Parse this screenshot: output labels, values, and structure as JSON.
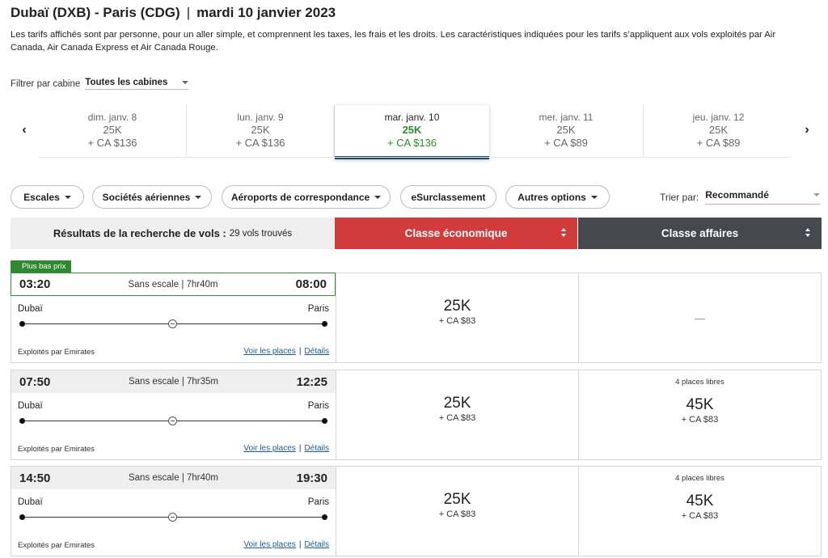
{
  "header": {
    "route": "Dubaï (DXB) - Paris (CDG)",
    "separator": "|",
    "date": "mardi 10 janvier 2023",
    "description": "Les tarifs affichés sont par personne, pour un aller simple, et comprennent les taxes, les frais et les droits. Les caractéristiques indiquées pour les tarifs s’appliquent aux vols exploités par Air Canada, Air Canada Express et Air Canada Rouge."
  },
  "cabin_filter": {
    "label": "Filtrer par cabine",
    "value": "Toutes les cabines"
  },
  "date_nav": {
    "prev_icon": "‹",
    "next_icon": "›",
    "dates": [
      {
        "day": "dim. janv. 8",
        "points": "25K",
        "tax": "+ CA $136",
        "active": false
      },
      {
        "day": "lun. janv. 9",
        "points": "25K",
        "tax": "+ CA $136",
        "active": false
      },
      {
        "day": "mar. janv. 10",
        "points": "25K",
        "tax": "+ CA $136",
        "active": true
      },
      {
        "day": "mer. janv. 11",
        "points": "25K",
        "tax": "+ CA $89",
        "active": false
      },
      {
        "day": "jeu. janv. 12",
        "points": "25K",
        "tax": "+ CA $89",
        "active": false
      }
    ]
  },
  "filters": {
    "escales": "Escales",
    "airlines": "Sociétés aériennes",
    "airports": "Aéroports de correspondance",
    "upgrade": "eSurclassement",
    "more": "Autres options"
  },
  "sort": {
    "label": "Trier par:",
    "value": "Recommandé"
  },
  "results_header": {
    "title": "Résultats de la recherche de vols :",
    "count": "29 vols trouvés",
    "economy": "Classe économique",
    "business": "Classe affaires"
  },
  "badge": "Plus bas prix",
  "flights": [
    {
      "dep": "03:20",
      "arr": "08:00",
      "stops": "Sans escale | 7hr40m",
      "from": "Dubaï",
      "to": "Paris",
      "operated": "Exploités par Emirates",
      "seats_link": "Voir les places",
      "details_link": "Détails",
      "link_sep": "|",
      "eco_points": "25K",
      "eco_tax": "+ CA $83",
      "bus_available": false,
      "bus_dash": "—"
    },
    {
      "dep": "07:50",
      "arr": "12:25",
      "stops": "Sans escale | 7hr35m",
      "from": "Dubaï",
      "to": "Paris",
      "operated": "Exploités par Emirates",
      "seats_link": "Voir les places",
      "details_link": "Détails",
      "link_sep": "|",
      "eco_points": "25K",
      "eco_tax": "+ CA $83",
      "bus_available": true,
      "bus_seats": "4 places libres",
      "bus_points": "45K",
      "bus_tax": "+ CA $83"
    },
    {
      "dep": "14:50",
      "arr": "19:30",
      "stops": "Sans escale | 7hr40m",
      "from": "Dubaï",
      "to": "Paris",
      "operated": "Exploités par Emirates",
      "seats_link": "Voir les places",
      "details_link": "Détails",
      "link_sep": "|",
      "eco_points": "25K",
      "eco_tax": "+ CA $83",
      "bus_available": true,
      "bus_seats": "4 places libres",
      "bus_points": "45K",
      "bus_tax": "+ CA $83"
    }
  ],
  "colors": {
    "economy": "#d13b3b",
    "business": "#45484d",
    "best_price": "#2f8a2f",
    "active_price": "#2e8b2e",
    "link": "#1d5e8f",
    "active_underline": "#1b4a72"
  }
}
